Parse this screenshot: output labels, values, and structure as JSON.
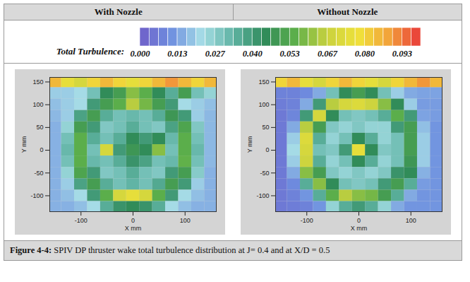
{
  "colorbar": {
    "title": "Total Turbulence:",
    "range": [
      0,
      0.1
    ],
    "ticks": [
      {
        "value": 0,
        "label": "0.000"
      },
      {
        "value": 0.0133,
        "label": "0.013"
      },
      {
        "value": 0.0267,
        "label": "0.027"
      },
      {
        "value": 0.04,
        "label": "0.040"
      },
      {
        "value": 0.0533,
        "label": "0.053"
      },
      {
        "value": 0.0667,
        "label": "0.067"
      },
      {
        "value": 0.08,
        "label": "0.080"
      },
      {
        "value": 0.0933,
        "label": "0.093"
      }
    ],
    "colors": [
      "#6f5fc8",
      "#6e8fe0",
      "#a6dde6",
      "#5fb3a3",
      "#2f8a5a",
      "#5db04a",
      "#c9d23e",
      "#f0e23a",
      "#f2a23a",
      "#e8383a"
    ]
  },
  "chart_data": [
    {
      "type": "heatmap",
      "title": "With Nozzle",
      "xlabel": "X mm",
      "ylabel": "Y mm",
      "xlim": [
        -160,
        160
      ],
      "ylim": [
        -135,
        160
      ],
      "xticks": [
        -100,
        0,
        100
      ],
      "yticks": [
        150,
        100,
        50,
        0,
        -50,
        -100
      ],
      "x": [
        -150,
        -125,
        -100,
        -75,
        -50,
        -25,
        0,
        25,
        50,
        75,
        100,
        125,
        150
      ],
      "y": [
        150,
        125,
        100,
        75,
        50,
        25,
        0,
        -25,
        -50,
        -75,
        -100,
        -125
      ],
      "z": [
        [
          0.085,
          0.075,
          0.07,
          0.08,
          0.085,
          0.08,
          0.075,
          0.08,
          0.085,
          0.09,
          0.085,
          0.08,
          0.085
        ],
        [
          0.02,
          0.02,
          0.022,
          0.03,
          0.045,
          0.05,
          0.06,
          0.055,
          0.045,
          0.035,
          0.05,
          0.03,
          0.025
        ],
        [
          0.018,
          0.02,
          0.022,
          0.04,
          0.05,
          0.055,
          0.065,
          0.058,
          0.05,
          0.04,
          0.022,
          0.02,
          0.018
        ],
        [
          0.017,
          0.02,
          0.038,
          0.05,
          0.035,
          0.03,
          0.032,
          0.03,
          0.035,
          0.048,
          0.04,
          0.02,
          0.017
        ],
        [
          0.016,
          0.025,
          0.05,
          0.04,
          0.028,
          0.03,
          0.035,
          0.03,
          0.028,
          0.038,
          0.052,
          0.028,
          0.017
        ],
        [
          0.016,
          0.03,
          0.055,
          0.035,
          0.03,
          0.035,
          0.045,
          0.04,
          0.045,
          0.032,
          0.055,
          0.03,
          0.017
        ],
        [
          0.016,
          0.032,
          0.055,
          0.03,
          0.07,
          0.04,
          0.048,
          0.045,
          0.06,
          0.03,
          0.055,
          0.032,
          0.017
        ],
        [
          0.016,
          0.03,
          0.055,
          0.032,
          0.03,
          0.035,
          0.042,
          0.038,
          0.03,
          0.032,
          0.056,
          0.03,
          0.017
        ],
        [
          0.016,
          0.025,
          0.052,
          0.04,
          0.028,
          0.03,
          0.035,
          0.03,
          0.028,
          0.04,
          0.05,
          0.027,
          0.016
        ],
        [
          0.016,
          0.02,
          0.038,
          0.05,
          0.035,
          0.03,
          0.033,
          0.03,
          0.036,
          0.05,
          0.04,
          0.02,
          0.016
        ],
        [
          0.016,
          0.018,
          0.022,
          0.04,
          0.055,
          0.07,
          0.075,
          0.07,
          0.055,
          0.04,
          0.022,
          0.018,
          0.016
        ],
        [
          0.016,
          0.016,
          0.018,
          0.022,
          0.035,
          0.042,
          0.045,
          0.042,
          0.035,
          0.022,
          0.018,
          0.016,
          0.016
        ]
      ]
    },
    {
      "type": "heatmap",
      "title": "Without Nozzle",
      "xlabel": "X mm",
      "ylabel": "Y mm",
      "xlim": [
        -160,
        160
      ],
      "ylim": [
        -135,
        160
      ],
      "xticks": [
        -100,
        0,
        100
      ],
      "yticks": [
        150,
        100,
        50,
        0,
        -50,
        -100
      ],
      "x": [
        -150,
        -125,
        -100,
        -75,
        -50,
        -25,
        0,
        25,
        50,
        75,
        100,
        125,
        150
      ],
      "y": [
        150,
        125,
        100,
        75,
        50,
        25,
        0,
        -25,
        -50,
        -75,
        -100,
        -125
      ],
      "z": [
        [
          0.08,
          0.085,
          0.075,
          0.07,
          0.08,
          0.085,
          0.08,
          0.075,
          0.07,
          0.08,
          0.085,
          0.09,
          0.085
        ],
        [
          0.008,
          0.008,
          0.01,
          0.015,
          0.03,
          0.045,
          0.05,
          0.045,
          0.03,
          0.02,
          0.015,
          0.014,
          0.014
        ],
        [
          0.007,
          0.008,
          0.015,
          0.04,
          0.065,
          0.07,
          0.072,
          0.068,
          0.06,
          0.045,
          0.02,
          0.013,
          0.013
        ],
        [
          0.006,
          0.009,
          0.04,
          0.07,
          0.045,
          0.03,
          0.028,
          0.03,
          0.035,
          0.055,
          0.04,
          0.014,
          0.013
        ],
        [
          0.006,
          0.015,
          0.065,
          0.05,
          0.028,
          0.025,
          0.028,
          0.025,
          0.025,
          0.04,
          0.05,
          0.018,
          0.012
        ],
        [
          0.006,
          0.02,
          0.072,
          0.035,
          0.025,
          0.03,
          0.045,
          0.035,
          0.025,
          0.03,
          0.05,
          0.02,
          0.012
        ],
        [
          0.006,
          0.022,
          0.07,
          0.03,
          0.028,
          0.04,
          0.075,
          0.045,
          0.028,
          0.03,
          0.05,
          0.02,
          0.012
        ],
        [
          0.006,
          0.02,
          0.068,
          0.035,
          0.025,
          0.03,
          0.045,
          0.035,
          0.025,
          0.03,
          0.048,
          0.02,
          0.012
        ],
        [
          0.006,
          0.015,
          0.06,
          0.05,
          0.028,
          0.025,
          0.028,
          0.025,
          0.028,
          0.042,
          0.045,
          0.016,
          0.012
        ],
        [
          0.006,
          0.01,
          0.035,
          0.06,
          0.045,
          0.03,
          0.028,
          0.03,
          0.04,
          0.05,
          0.035,
          0.013,
          0.012
        ],
        [
          0.006,
          0.008,
          0.012,
          0.035,
          0.055,
          0.065,
          0.06,
          0.058,
          0.05,
          0.035,
          0.015,
          0.012,
          0.012
        ],
        [
          0.006,
          0.007,
          0.008,
          0.012,
          0.025,
          0.035,
          0.04,
          0.035,
          0.025,
          0.015,
          0.012,
          0.012,
          0.012
        ]
      ]
    }
  ],
  "caption": {
    "number": "Figure 4-4:",
    "text": "SPIV DP thruster wake total turbulence distribution at J= 0.4 and at X/D = 0.5"
  }
}
